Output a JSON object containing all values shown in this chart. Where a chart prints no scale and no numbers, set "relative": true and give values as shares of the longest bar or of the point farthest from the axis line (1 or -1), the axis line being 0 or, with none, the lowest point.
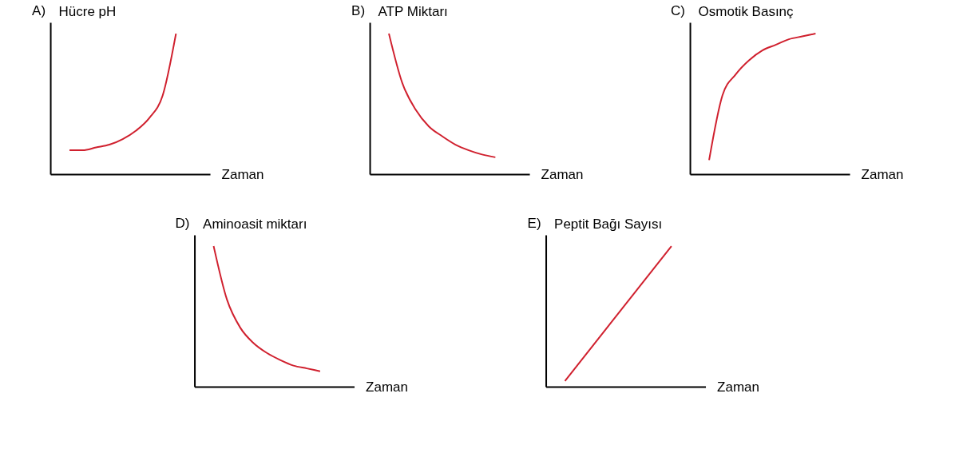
{
  "chart_data": [
    {
      "type": "line",
      "title": "A)",
      "ylabel": "Hücre pH",
      "xlabel": "Zaman",
      "relative": true,
      "categories": [
        null,
        null,
        null,
        null,
        null,
        null,
        null,
        null,
        null
      ],
      "series": [
        {
          "color": "#d0202e",
          "values": [
            0.17,
            0.17,
            0.19,
            0.21,
            0.25,
            0.31,
            0.4,
            0.56,
            1
          ]
        }
      ],
      "grid": false,
      "marker": "none",
      "line_style": "solid",
      "tick_labels": false
    },
    {
      "type": "line",
      "title": "B)",
      "ylabel": "ATP Miktarı",
      "xlabel": "Zaman",
      "relative": true,
      "categories": [
        null,
        null,
        null,
        null,
        null,
        null,
        null,
        null,
        null
      ],
      "series": [
        {
          "color": "#d0202e",
          "values": [
            1,
            0.65,
            0.46,
            0.34,
            0.27,
            0.21,
            0.17,
            0.14,
            0.12
          ]
        }
      ],
      "grid": false,
      "marker": "none",
      "line_style": "solid",
      "tick_labels": false
    },
    {
      "type": "line",
      "title": "C)",
      "ylabel": "Osmotik Basınç",
      "xlabel": "Zaman",
      "relative": true,
      "categories": [
        null,
        null,
        null,
        null,
        null,
        null,
        null,
        null,
        null
      ],
      "series": [
        {
          "color": "#d0202e",
          "values": [
            0.1,
            0.56,
            0.71,
            0.81,
            0.88,
            0.92,
            0.96,
            0.98,
            1
          ]
        }
      ],
      "grid": false,
      "marker": "none",
      "line_style": "solid",
      "tick_labels": false
    },
    {
      "type": "line",
      "title": "D)",
      "ylabel": "Aminoasit miktarı",
      "xlabel": "Zaman",
      "relative": true,
      "categories": [
        null,
        null,
        null,
        null,
        null,
        null,
        null,
        null,
        null
      ],
      "series": [
        {
          "color": "#d0202e",
          "values": [
            1,
            0.62,
            0.42,
            0.31,
            0.24,
            0.19,
            0.15,
            0.13,
            0.11
          ]
        }
      ],
      "grid": false,
      "marker": "none",
      "line_style": "solid",
      "tick_labels": false
    },
    {
      "type": "line",
      "title": "E)",
      "ylabel": "Peptit Bağı Sayısı",
      "xlabel": "Zaman",
      "relative": true,
      "categories": [
        null,
        null
      ],
      "series": [
        {
          "color": "#d0202e",
          "values": [
            0.04,
            1
          ]
        }
      ],
      "grid": false,
      "marker": "none",
      "line_style": "solid",
      "tick_labels": false
    }
  ]
}
